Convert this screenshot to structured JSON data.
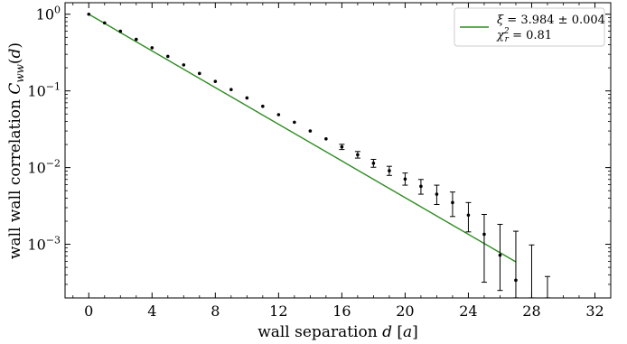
{
  "chart_data": {
    "type": "scatter",
    "xlabel": {
      "pre": "wall separation ",
      "sym": "d",
      "post": " [",
      "unit": "a",
      "close": "]"
    },
    "ylabel": {
      "pre": "wall wall correlation ",
      "sym": "C",
      "sub": "ww",
      "post": "(",
      "arg": "d",
      "close": ")"
    },
    "xlim": [
      -1.5,
      33
    ],
    "ylim_log10": [
      -3.7,
      0.15
    ],
    "x_scale": "linear",
    "y_scale": "log",
    "grid": false,
    "xticks": [
      0,
      4,
      8,
      12,
      16,
      20,
      24,
      28,
      32
    ],
    "yticks": [
      {
        "exp": 0,
        "label": "10",
        "sup": "0"
      },
      {
        "exp": -1,
        "label": "10",
        "sup": "−1"
      },
      {
        "exp": -2,
        "label": "10",
        "sup": "−2"
      },
      {
        "exp": -3,
        "label": "10",
        "sup": "−3"
      }
    ],
    "series": [
      {
        "name": "",
        "kind": "points_with_errorbars",
        "color": "#000000",
        "x": [
          0,
          1,
          2,
          3,
          4,
          5,
          6,
          7,
          8,
          9,
          10,
          11,
          12,
          13,
          14,
          15,
          16,
          17,
          18,
          19,
          20,
          21,
          22,
          23,
          24,
          25,
          26,
          27,
          28,
          29
        ],
        "y": [
          1.0,
          0.77,
          0.6,
          0.47,
          0.365,
          0.282,
          0.218,
          0.169,
          0.133,
          0.104,
          0.081,
          0.063,
          0.049,
          0.039,
          0.03,
          0.0237,
          0.0186,
          0.0147,
          0.0114,
          0.0091,
          0.0071,
          0.0057,
          0.0045,
          0.0035,
          0.0024,
          0.00135,
          0.00072,
          0.00034,
          null,
          null
        ],
        "yerr_low": [
          null,
          null,
          null,
          null,
          null,
          null,
          null,
          null,
          null,
          null,
          null,
          null,
          null,
          null,
          null,
          null,
          0.0172,
          0.0133,
          0.0101,
          0.0079,
          0.0059,
          0.0045,
          0.0033,
          0.0023,
          0.00145,
          0.00032,
          0.00025,
          0.0002,
          0.0002,
          0.0002
        ],
        "yerr_high": [
          null,
          null,
          null,
          null,
          null,
          null,
          null,
          null,
          null,
          null,
          null,
          null,
          null,
          null,
          null,
          null,
          0.0201,
          0.0162,
          0.0128,
          0.0104,
          0.0085,
          0.007,
          0.0059,
          0.0048,
          0.0035,
          0.00245,
          0.00182,
          0.00148,
          0.00098,
          0.00038
        ]
      },
      {
        "name": "fit",
        "kind": "line",
        "color": "#2e8b22",
        "x": [
          0,
          27
        ],
        "y": [
          1.0,
          0.00059
        ]
      }
    ],
    "legend": {
      "placement": "top-right",
      "line1": {
        "sym": "ξ",
        "rest": " = 3.984 ± 0.004"
      },
      "line2": {
        "sym": "χ",
        "sub": "r",
        "sup": "2",
        "rest": " = 0.81"
      }
    }
  }
}
